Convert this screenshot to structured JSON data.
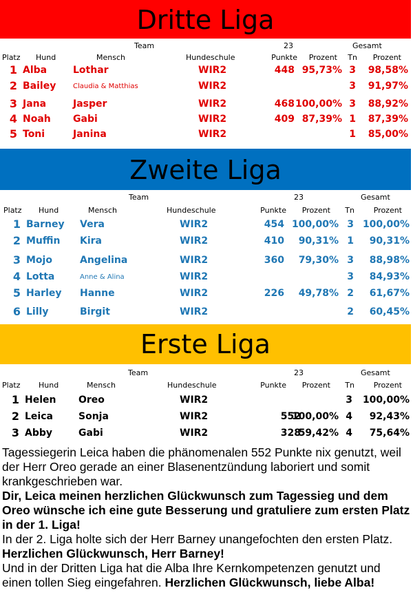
{
  "leagues": [
    {
      "title": "Dritte Liga",
      "color": "#ff0000",
      "text_color": "#e00000",
      "headers": {
        "team": "Team",
        "year": "23",
        "total": "Gesamt",
        "platz": "Platz",
        "hund": "Hund",
        "mensch": "Mensch",
        "schule": "Hundeschule",
        "punkte": "Punkte",
        "prozent": "Prozent",
        "tn": "Tn",
        "gprozent": "Prozent"
      },
      "rows": [
        {
          "platz": "1",
          "hund": "Alba",
          "mensch": "Lothar",
          "schule": "WIR2",
          "punkte": "448",
          "prozent": "95,73%",
          "tn": "3",
          "gesamt": "98,58%",
          "small": false
        },
        {
          "platz": "2",
          "hund": "Bailey",
          "mensch": "Claudia & Matthias",
          "schule": "WIR2",
          "punkte": "",
          "prozent": "",
          "tn": "3",
          "gesamt": "91,97%",
          "small": true
        },
        {
          "platz": "3",
          "hund": "Jana",
          "mensch": "Jasper",
          "schule": "WIR2",
          "punkte": "468",
          "prozent": "100,00%",
          "tn": "3",
          "gesamt": "88,92%",
          "small": false
        },
        {
          "platz": "4",
          "hund": "Noah",
          "mensch": "Gabi",
          "schule": "WIR2",
          "punkte": "409",
          "prozent": "87,39%",
          "tn": "1",
          "gesamt": "87,39%",
          "small": false
        },
        {
          "platz": "5",
          "hund": "Toni",
          "mensch": "Janina",
          "schule": "WIR2",
          "punkte": "",
          "prozent": "",
          "tn": "1",
          "gesamt": "85,00%",
          "small": false
        }
      ]
    },
    {
      "title": "Zweite Liga",
      "color": "#0070c0",
      "text_color": "#1f77b4",
      "headers": {
        "team": "Team",
        "year": "23",
        "total": "Gesamt",
        "platz": "Platz",
        "hund": "Hund",
        "mensch": "Mensch",
        "schule": "Hundeschule",
        "punkte": "Punkte",
        "prozent": "Prozent",
        "tn": "Tn",
        "gprozent": "Prozent"
      },
      "rows": [
        {
          "platz": "1",
          "hund": "Barney",
          "mensch": "Vera",
          "schule": "WIR2",
          "punkte": "454",
          "prozent": "100,00%",
          "tn": "3",
          "gesamt": "100,00%",
          "small": false
        },
        {
          "platz": "2",
          "hund": "Muffin",
          "mensch": "Kira",
          "schule": "WIR2",
          "punkte": "410",
          "prozent": "90,31%",
          "tn": "1",
          "gesamt": "90,31%",
          "small": false
        },
        {
          "platz": "3",
          "hund": "Mojo",
          "mensch": "Angelina",
          "schule": "WIR2",
          "punkte": "360",
          "prozent": "79,30%",
          "tn": "3",
          "gesamt": "88,98%",
          "small": false
        },
        {
          "platz": "4",
          "hund": "Lotta",
          "mensch": "Anne & Alina",
          "schule": "WIR2",
          "punkte": "",
          "prozent": "",
          "tn": "3",
          "gesamt": "84,93%",
          "small": true
        },
        {
          "platz": "5",
          "hund": "Harley",
          "mensch": "Hanne",
          "schule": "WIR2",
          "punkte": "226",
          "prozent": "49,78%",
          "tn": "2",
          "gesamt": "61,67%",
          "small": false
        },
        {
          "platz": "6",
          "hund": "Lilly",
          "mensch": "Birgit",
          "schule": "WIR2",
          "punkte": "",
          "prozent": "",
          "tn": "2",
          "gesamt": "60,45%",
          "small": false
        }
      ]
    },
    {
      "title": "Erste Liga",
      "color": "#ffc000",
      "text_color": "#000000",
      "headers": {
        "team": "Team",
        "year": "23",
        "total": "Gesamt",
        "platz": "Platz",
        "hund": "Hund",
        "mensch": "Mensch",
        "schule": "Hundeschule",
        "punkte": "Punkte",
        "prozent": "Prozent",
        "tn": "Tn",
        "gprozent": "Prozent"
      },
      "rows": [
        {
          "platz": "1",
          "hund": "Helen",
          "mensch": "Oreo",
          "schule": "WIR2",
          "punkte": "",
          "prozent": "",
          "tn": "3",
          "gesamt": "100,00%",
          "small": false
        },
        {
          "platz": "2",
          "hund": "Leica",
          "mensch": "Sonja",
          "schule": "WIR2",
          "punkte": "552",
          "prozent": "100,00%",
          "tn": "4",
          "gesamt": "92,43%",
          "small": false
        },
        {
          "platz": "3",
          "hund": "Abby",
          "mensch": "Gabi",
          "schule": "WIR2",
          "punkte": "328",
          "prozent": "59,42%",
          "tn": "4",
          "gesamt": "75,64%",
          "small": false
        }
      ]
    }
  ],
  "report": {
    "p1": "Tagessiegerin Leica haben die phänomenalen 552 Punkte nix genutzt, weil der Herr Oreo gerade an einer Blasenentzündung laboriert und somit krankgeschrieben war.",
    "p2": "Dir, Leica meinen herzlichen Glückwunsch zum Tagessieg und dem Oreo wünsche ich eine gute Besserung und gratuliere zum ersten Platz in der 1. Liga!",
    "p3": "In der 2. Liga holte sich der Herr Barney unangefochten den ersten Platz.",
    "p3b": "Herzlichen Glückwunsch, Herr Barney!",
    "p4": "Und in der Dritten Liga hat die Alba Ihre Kernkompetenzen genutzt und einen tollen Sieg eingefahren.",
    "p4b": "Herzlichen Glückwunsch, liebe Alba!"
  }
}
